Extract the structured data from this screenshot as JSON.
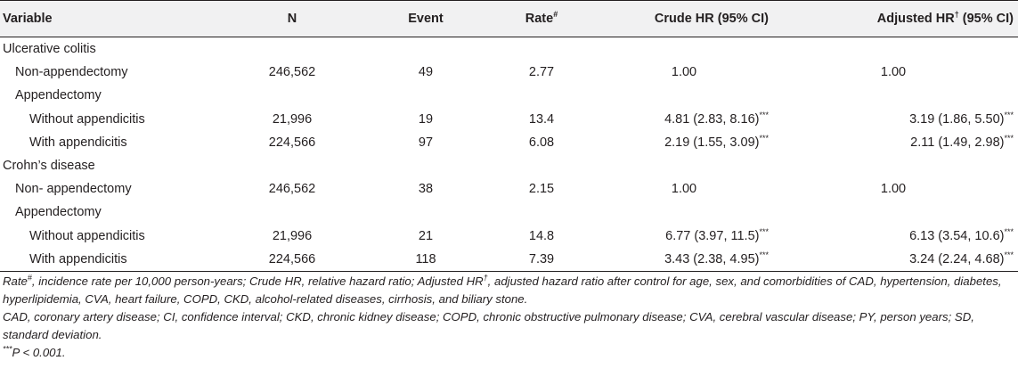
{
  "table": {
    "headers": {
      "variable": "Variable",
      "n": "N",
      "event": "Event",
      "rate": "Rate",
      "rate_sup": "#",
      "crude": "Crude HR (95% CI)",
      "adjusted_pre": "Adjusted HR",
      "adjusted_sup": "†",
      "adjusted_post": " (95% CI)"
    },
    "groups": [
      {
        "label": "Ulcerative colitis",
        "control": {
          "label": "Non-appendectomy",
          "n": "246,562",
          "event": "49",
          "rate": "2.77",
          "crude": "1.00",
          "adjusted": "1.00"
        },
        "subgroup_label": "Appendectomy",
        "rows": [
          {
            "label": "Without appendicitis",
            "n": "21,996",
            "event": "19",
            "rate": "13.4",
            "crude": "4.81 (2.83, 8.16)",
            "crude_sig": "***",
            "adjusted": "3.19 (1.86, 5.50)",
            "adjusted_sig": "***"
          },
          {
            "label": "With appendicitis",
            "n": "224,566",
            "event": "97",
            "rate": "6.08",
            "crude": "2.19 (1.55, 3.09)",
            "crude_sig": "***",
            "adjusted": "2.11 (1.49, 2.98)",
            "adjusted_sig": "***"
          }
        ]
      },
      {
        "label": "Crohn’s disease",
        "control": {
          "label": "Non- appendectomy",
          "n": "246,562",
          "event": "38",
          "rate": "2.15",
          "crude": "1.00",
          "adjusted": "1.00"
        },
        "subgroup_label": "Appendectomy",
        "rows": [
          {
            "label": "Without appendicitis",
            "n": "21,996",
            "event": "21",
            "rate": "14.8",
            "crude": "6.77 (3.97, 11.5)",
            "crude_sig": "***",
            "adjusted": "6.13 (3.54, 10.6)",
            "adjusted_sig": "***"
          },
          {
            "label": "With appendicitis",
            "n": "224,566",
            "event": "118",
            "rate": "7.39",
            "crude": "3.43 (2.38, 4.95)",
            "crude_sig": "***",
            "adjusted": "3.24 (2.24, 4.68)",
            "adjusted_sig": "***"
          }
        ]
      }
    ]
  },
  "footnotes": {
    "note1": {
      "rate": "Rate",
      "rate_sup": "#",
      "part1": ", incidence rate per 10,000 person-years; Crude HR, relative hazard ratio; Adjusted HR",
      "adj_sup": "†",
      "part2": ", adjusted hazard ratio after control for age, sex, and comorbidities of CAD, hypertension, diabetes, hyperlipidemia, CVA, heart failure, COPD, CKD, alcohol-related diseases, cirrhosis, and biliary stone."
    },
    "note2": "CAD, coronary artery disease; CI, confidence interval; CKD, chronic kidney disease; COPD, chronic obstructive pulmonary disease; CVA, cerebral vascular disease; PY, person years; SD, standard deviation.",
    "note3": {
      "sup": "***",
      "text": "P < 0.001."
    }
  }
}
